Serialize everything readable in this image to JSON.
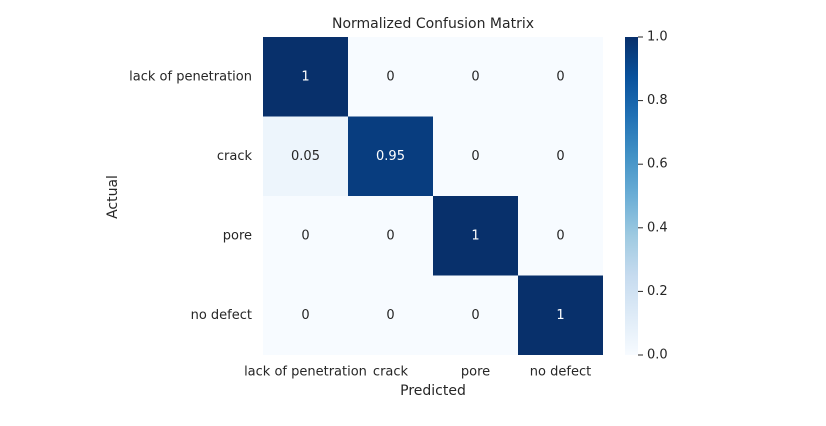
{
  "chart_data": {
    "type": "heatmap",
    "title": "Normalized Confusion Matrix",
    "xlabel": "Predicted",
    "ylabel": "Actual",
    "x_categories": [
      "lack of penetration",
      "crack",
      "pore",
      "no defect"
    ],
    "y_categories": [
      "lack of penetration",
      "crack",
      "pore",
      "no defect"
    ],
    "values": [
      [
        1,
        0,
        0,
        0
      ],
      [
        0.05,
        0.95,
        0,
        0
      ],
      [
        0,
        0,
        1,
        0
      ],
      [
        0,
        0,
        0,
        1
      ]
    ],
    "colormap": [
      "#f7fbff",
      "#deebf7",
      "#c6dbef",
      "#9ecae1",
      "#6baed6",
      "#4292c6",
      "#2171b5",
      "#08519c",
      "#08306b"
    ],
    "clim": [
      0,
      1
    ],
    "cticks": [
      {
        "value": 0,
        "label": "0.0"
      },
      0.2,
      0.4,
      0.6,
      0.8,
      {
        "value": 1,
        "label": "1.0"
      }
    ]
  }
}
